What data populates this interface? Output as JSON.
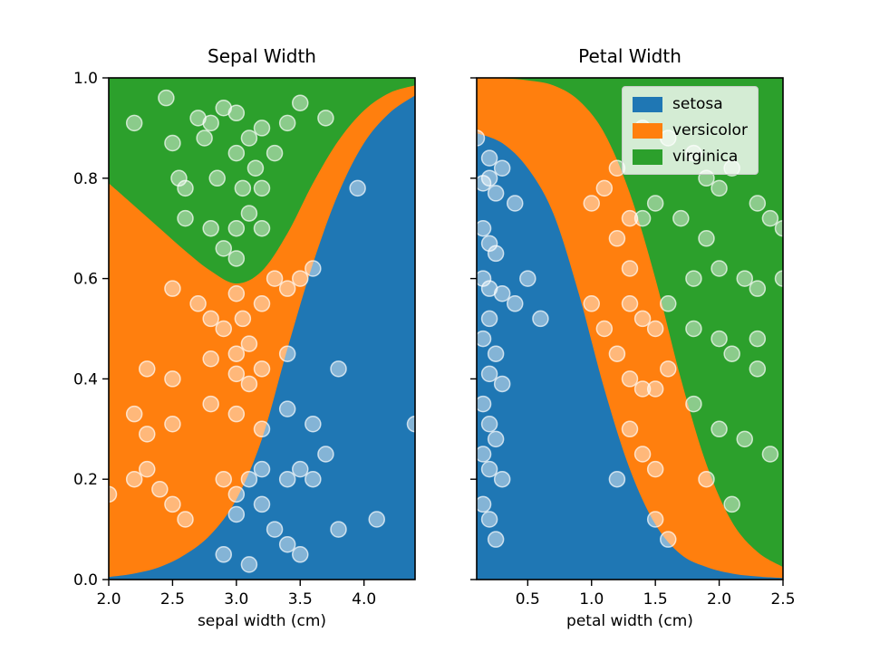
{
  "figure": {
    "background": "#ffffff"
  },
  "colors": {
    "setosa": "#1f77b4",
    "versicolor": "#ff7f0e",
    "virginica": "#2ca02c",
    "scatter_fill": "rgba(255,255,255,0.45)",
    "scatter_edge": "rgba(255,255,255,0.7)",
    "axis": "#000000",
    "legend_border": "#cccccc"
  },
  "legend": {
    "entries": [
      {
        "label": "setosa",
        "color": "#1f77b4"
      },
      {
        "label": "versicolor",
        "color": "#ff7f0e"
      },
      {
        "label": "virginica",
        "color": "#2ca02c"
      }
    ]
  },
  "chart_data": [
    {
      "type": "area",
      "title": "Sepal Width",
      "xlabel": "sepal width (cm)",
      "ylabel": "",
      "xlim": [
        2.0,
        4.4
      ],
      "ylim": [
        0.0,
        1.0
      ],
      "xticks": [
        2.0,
        2.5,
        3.0,
        3.5,
        4.0
      ],
      "yticks": [
        0.0,
        0.2,
        0.4,
        0.6,
        0.8,
        1.0
      ],
      "ytick_labels": true,
      "grid": false,
      "x": [
        2.0,
        2.2,
        2.4,
        2.6,
        2.8,
        3.0,
        3.2,
        3.4,
        3.6,
        3.8,
        4.0,
        4.2,
        4.4
      ],
      "series": [
        {
          "name": "setosa",
          "cumulative_top": [
            0.005,
            0.012,
            0.025,
            0.05,
            0.09,
            0.16,
            0.28,
            0.46,
            0.63,
            0.77,
            0.87,
            0.93,
            0.965
          ]
        },
        {
          "name": "versicolor",
          "cumulative_top": [
            0.79,
            0.745,
            0.7,
            0.655,
            0.615,
            0.59,
            0.615,
            0.69,
            0.79,
            0.875,
            0.935,
            0.97,
            0.985
          ]
        },
        {
          "name": "virginica",
          "cumulative_top": [
            1,
            1,
            1,
            1,
            1,
            1,
            1,
            1,
            1,
            1,
            1,
            1,
            1
          ]
        }
      ],
      "scatter": [
        [
          2.0,
          0.17
        ],
        [
          2.2,
          0.2
        ],
        [
          2.2,
          0.33
        ],
        [
          2.2,
          0.91
        ],
        [
          2.3,
          0.42
        ],
        [
          2.3,
          0.29
        ],
        [
          2.3,
          0.22
        ],
        [
          2.4,
          0.18
        ],
        [
          2.45,
          0.96
        ],
        [
          2.5,
          0.58
        ],
        [
          2.5,
          0.4
        ],
        [
          2.5,
          0.31
        ],
        [
          2.5,
          0.15
        ],
        [
          2.5,
          0.87
        ],
        [
          2.55,
          0.8
        ],
        [
          2.6,
          0.78
        ],
        [
          2.6,
          0.72
        ],
        [
          2.6,
          0.12
        ],
        [
          2.7,
          0.92
        ],
        [
          2.7,
          0.55
        ],
        [
          2.75,
          0.88
        ],
        [
          2.8,
          0.91
        ],
        [
          2.8,
          0.7
        ],
        [
          2.8,
          0.52
        ],
        [
          2.8,
          0.44
        ],
        [
          2.8,
          0.35
        ],
        [
          2.85,
          0.8
        ],
        [
          2.9,
          0.94
        ],
        [
          2.9,
          0.66
        ],
        [
          2.9,
          0.5
        ],
        [
          2.9,
          0.2
        ],
        [
          2.9,
          0.05
        ],
        [
          3.0,
          0.93
        ],
        [
          3.0,
          0.85
        ],
        [
          3.0,
          0.7
        ],
        [
          3.0,
          0.64
        ],
        [
          3.0,
          0.57
        ],
        [
          3.0,
          0.45
        ],
        [
          3.0,
          0.41
        ],
        [
          3.0,
          0.33
        ],
        [
          3.0,
          0.17
        ],
        [
          3.0,
          0.13
        ],
        [
          3.05,
          0.78
        ],
        [
          3.05,
          0.52
        ],
        [
          3.1,
          0.88
        ],
        [
          3.1,
          0.73
        ],
        [
          3.1,
          0.47
        ],
        [
          3.1,
          0.39
        ],
        [
          3.1,
          0.2
        ],
        [
          3.1,
          0.03
        ],
        [
          3.15,
          0.82
        ],
        [
          3.2,
          0.9
        ],
        [
          3.2,
          0.78
        ],
        [
          3.2,
          0.7
        ],
        [
          3.2,
          0.55
        ],
        [
          3.2,
          0.42
        ],
        [
          3.2,
          0.3
        ],
        [
          3.2,
          0.22
        ],
        [
          3.2,
          0.15
        ],
        [
          3.3,
          0.85
        ],
        [
          3.3,
          0.6
        ],
        [
          3.3,
          0.1
        ],
        [
          3.4,
          0.91
        ],
        [
          3.4,
          0.58
        ],
        [
          3.4,
          0.45
        ],
        [
          3.4,
          0.34
        ],
        [
          3.4,
          0.2
        ],
        [
          3.4,
          0.07
        ],
        [
          3.5,
          0.95
        ],
        [
          3.5,
          0.6
        ],
        [
          3.5,
          0.22
        ],
        [
          3.5,
          0.05
        ],
        [
          3.6,
          0.62
        ],
        [
          3.6,
          0.31
        ],
        [
          3.6,
          0.2
        ],
        [
          3.7,
          0.92
        ],
        [
          3.7,
          0.25
        ],
        [
          3.8,
          0.42
        ],
        [
          3.8,
          0.1
        ],
        [
          3.95,
          0.78
        ],
        [
          4.1,
          0.12
        ],
        [
          4.4,
          0.31
        ]
      ]
    },
    {
      "type": "area",
      "title": "Petal Width",
      "xlabel": "petal width (cm)",
      "ylabel": "",
      "xlim": [
        0.1,
        2.5
      ],
      "ylim": [
        0.0,
        1.0
      ],
      "xticks": [
        0.5,
        1.0,
        1.5,
        2.0,
        2.5
      ],
      "yticks": [
        0.0,
        0.2,
        0.4,
        0.6,
        0.8,
        1.0
      ],
      "ytick_labels": false,
      "grid": false,
      "x": [
        0.1,
        0.3,
        0.5,
        0.7,
        0.9,
        1.1,
        1.3,
        1.5,
        1.7,
        1.9,
        2.1,
        2.3,
        2.5
      ],
      "series": [
        {
          "name": "setosa",
          "cumulative_top": [
            0.89,
            0.87,
            0.82,
            0.73,
            0.57,
            0.38,
            0.22,
            0.11,
            0.05,
            0.025,
            0.012,
            0.006,
            0.003
          ]
        },
        {
          "name": "versicolor",
          "cumulative_top": [
            1.0,
            0.999,
            0.995,
            0.985,
            0.955,
            0.89,
            0.77,
            0.6,
            0.4,
            0.23,
            0.115,
            0.055,
            0.025
          ]
        },
        {
          "name": "virginica",
          "cumulative_top": [
            1,
            1,
            1,
            1,
            1,
            1,
            1,
            1,
            1,
            1,
            1,
            1,
            1
          ]
        }
      ],
      "scatter": [
        [
          0.1,
          0.88
        ],
        [
          0.15,
          0.79
        ],
        [
          0.15,
          0.7
        ],
        [
          0.15,
          0.6
        ],
        [
          0.15,
          0.48
        ],
        [
          0.15,
          0.35
        ],
        [
          0.15,
          0.25
        ],
        [
          0.15,
          0.15
        ],
        [
          0.2,
          0.84
        ],
        [
          0.2,
          0.8
        ],
        [
          0.2,
          0.67
        ],
        [
          0.2,
          0.58
        ],
        [
          0.2,
          0.52
        ],
        [
          0.2,
          0.41
        ],
        [
          0.2,
          0.31
        ],
        [
          0.2,
          0.22
        ],
        [
          0.2,
          0.12
        ],
        [
          0.25,
          0.77
        ],
        [
          0.25,
          0.65
        ],
        [
          0.25,
          0.45
        ],
        [
          0.25,
          0.28
        ],
        [
          0.25,
          0.08
        ],
        [
          0.3,
          0.82
        ],
        [
          0.3,
          0.57
        ],
        [
          0.3,
          0.39
        ],
        [
          0.3,
          0.2
        ],
        [
          0.4,
          0.75
        ],
        [
          0.4,
          0.55
        ],
        [
          0.5,
          0.6
        ],
        [
          0.6,
          0.52
        ],
        [
          1.0,
          0.75
        ],
        [
          1.0,
          0.55
        ],
        [
          1.1,
          0.78
        ],
        [
          1.1,
          0.5
        ],
        [
          1.2,
          0.82
        ],
        [
          1.2,
          0.68
        ],
        [
          1.2,
          0.45
        ],
        [
          1.2,
          0.2
        ],
        [
          1.3,
          0.72
        ],
        [
          1.3,
          0.62
        ],
        [
          1.3,
          0.55
        ],
        [
          1.3,
          0.4
        ],
        [
          1.3,
          0.3
        ],
        [
          1.4,
          0.9
        ],
        [
          1.4,
          0.72
        ],
        [
          1.4,
          0.52
        ],
        [
          1.4,
          0.38
        ],
        [
          1.4,
          0.25
        ],
        [
          1.5,
          0.75
        ],
        [
          1.5,
          0.5
        ],
        [
          1.5,
          0.38
        ],
        [
          1.5,
          0.22
        ],
        [
          1.5,
          0.12
        ],
        [
          1.6,
          0.88
        ],
        [
          1.6,
          0.55
        ],
        [
          1.6,
          0.42
        ],
        [
          1.6,
          0.08
        ],
        [
          1.7,
          0.72
        ],
        [
          1.8,
          0.85
        ],
        [
          1.8,
          0.6
        ],
        [
          1.8,
          0.5
        ],
        [
          1.8,
          0.35
        ],
        [
          1.9,
          0.8
        ],
        [
          1.9,
          0.68
        ],
        [
          1.9,
          0.2
        ],
        [
          2.0,
          0.78
        ],
        [
          2.0,
          0.62
        ],
        [
          2.0,
          0.48
        ],
        [
          2.0,
          0.3
        ],
        [
          2.1,
          0.82
        ],
        [
          2.1,
          0.45
        ],
        [
          2.1,
          0.15
        ],
        [
          2.2,
          0.6
        ],
        [
          2.2,
          0.28
        ],
        [
          2.3,
          0.75
        ],
        [
          2.3,
          0.58
        ],
        [
          2.3,
          0.48
        ],
        [
          2.3,
          0.42
        ],
        [
          2.4,
          0.72
        ],
        [
          2.4,
          0.25
        ],
        [
          2.5,
          0.7
        ],
        [
          2.5,
          0.6
        ]
      ]
    }
  ]
}
